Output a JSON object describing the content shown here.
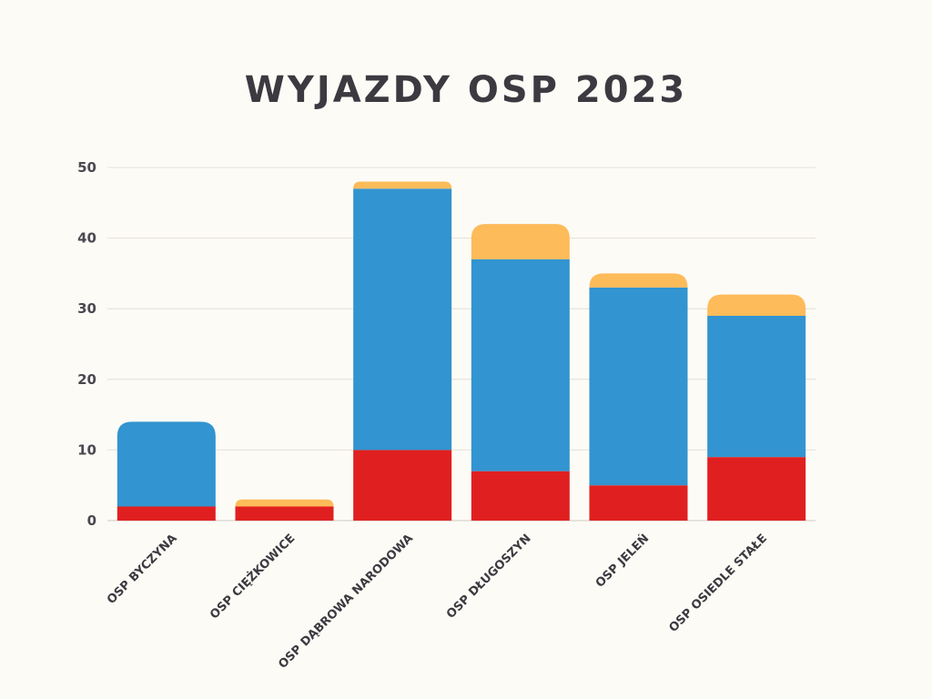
{
  "chart_data": {
    "type": "bar",
    "stacked": true,
    "title": "WYJAZDY OSP 2023",
    "xlabel": "",
    "ylabel": "",
    "ylim": [
      0,
      50
    ],
    "yticks": [
      0,
      10,
      20,
      30,
      40,
      50
    ],
    "grid": true,
    "legend": "none",
    "categories": [
      "OSP BYCZYNA",
      "OSP CIĘŻKOWICE",
      "OSP DĄBROWA NARODOWA",
      "OSP DŁUGOSZYN",
      "OSP JELEŃ",
      "OSP OSIEDLE STAŁE"
    ],
    "series": [
      {
        "color": "#e02020",
        "values": [
          2,
          2,
          10,
          7,
          5,
          9
        ]
      },
      {
        "color": "#3294d0",
        "values": [
          12,
          0,
          37,
          30,
          28,
          20
        ]
      },
      {
        "color": "#fdbb5a",
        "values": [
          0,
          1,
          1,
          5,
          2,
          3
        ]
      }
    ]
  }
}
